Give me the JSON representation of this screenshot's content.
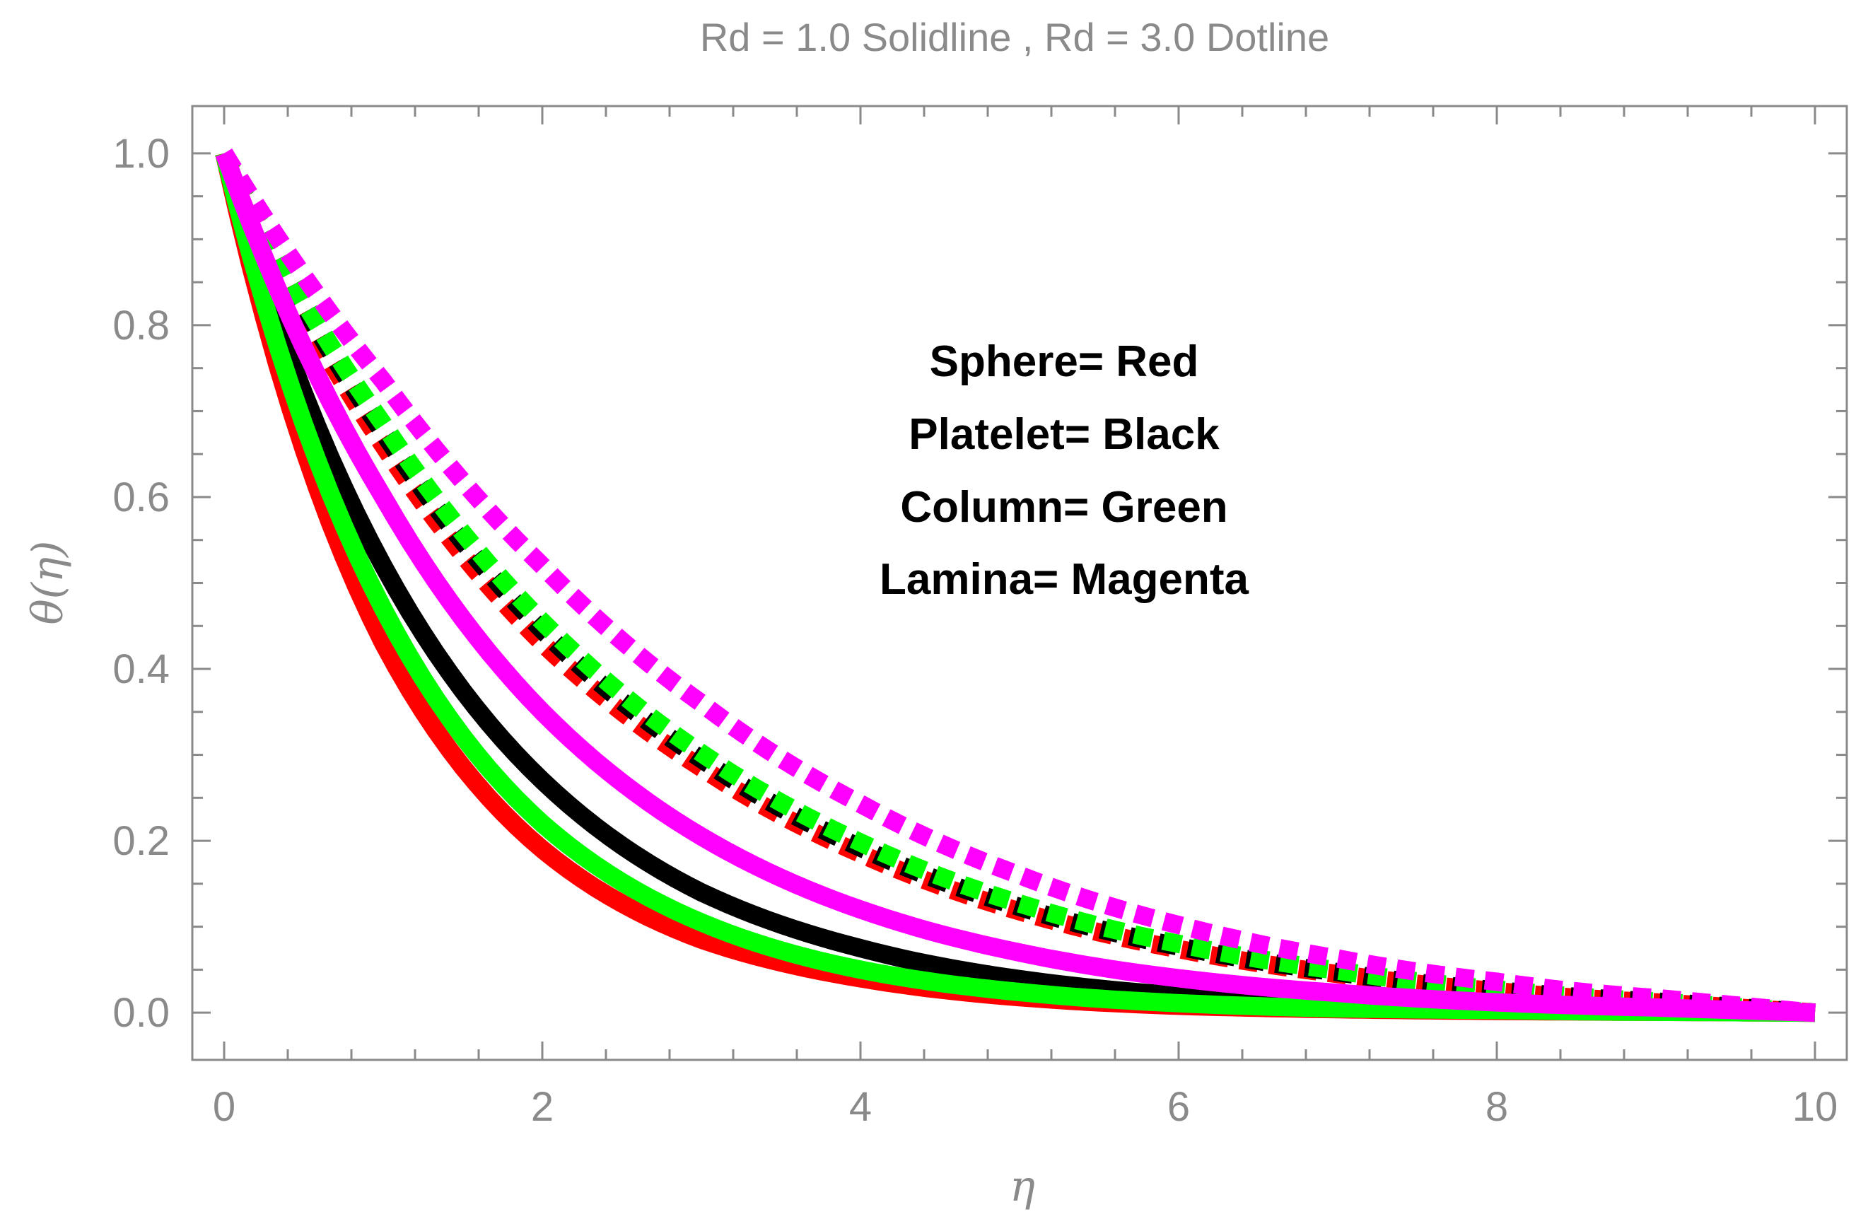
{
  "chart_data": {
    "type": "line",
    "title": "Rd = 1.0  Solidline , Rd = 3.0  Dotline",
    "xlabel": "η",
    "ylabel": "θ(η)",
    "xlim": [
      -0.2,
      10.2
    ],
    "ylim": [
      -0.055,
      1.055
    ],
    "x_ticks": [
      0,
      2,
      4,
      6,
      8,
      10
    ],
    "y_ticks": [
      0.0,
      0.2,
      0.4,
      0.6,
      0.8,
      1.0
    ],
    "x_tick_labels": [
      "0",
      "2",
      "4",
      "6",
      "8",
      "10"
    ],
    "y_tick_labels": [
      "0.0",
      "0.2",
      "0.4",
      "0.6",
      "0.8",
      "1.0"
    ],
    "grid": false,
    "annotation_lines": [
      "Sphere= Red",
      "Platelet= Black",
      "Column= Green",
      "Lamina= Magenta"
    ],
    "series": [
      {
        "name": "Sphere, Rd = 1.0",
        "color": "#ff0000",
        "style": "solid",
        "x": [
          0,
          1,
          2,
          3,
          4,
          5,
          6,
          7,
          8,
          9,
          10
        ],
        "values": [
          1.0,
          0.43,
          0.19,
          0.085,
          0.04,
          0.018,
          0.008,
          0.004,
          0.002,
          0.001,
          0.0
        ]
      },
      {
        "name": "Platelet, Rd = 1.0",
        "color": "#000000",
        "style": "solid",
        "x": [
          0,
          1,
          2,
          3,
          4,
          5,
          6,
          7,
          8,
          9,
          10
        ],
        "values": [
          1.0,
          0.52,
          0.27,
          0.14,
          0.075,
          0.039,
          0.02,
          0.011,
          0.006,
          0.003,
          0.0
        ]
      },
      {
        "name": "Column, Rd = 1.0",
        "color": "#00ff00",
        "style": "solid",
        "x": [
          0,
          1,
          2,
          3,
          4,
          5,
          6,
          7,
          8,
          9,
          10
        ],
        "values": [
          1.0,
          0.47,
          0.22,
          0.105,
          0.05,
          0.024,
          0.011,
          0.005,
          0.003,
          0.001,
          0.0
        ]
      },
      {
        "name": "Lamina, Rd = 1.0",
        "color": "#ff00ff",
        "style": "solid",
        "x": [
          0,
          1,
          2,
          3,
          4,
          5,
          6,
          7,
          8,
          9,
          10
        ],
        "values": [
          1.0,
          0.6,
          0.35,
          0.205,
          0.12,
          0.07,
          0.04,
          0.023,
          0.012,
          0.006,
          0.0
        ]
      },
      {
        "name": "Sphere, Rd = 3.0",
        "color": "#ff0000",
        "style": "dotted",
        "x": [
          0,
          1,
          2,
          3,
          4,
          5,
          6,
          7,
          8,
          9,
          10
        ],
        "values": [
          1.0,
          0.66,
          0.43,
          0.285,
          0.185,
          0.118,
          0.074,
          0.045,
          0.025,
          0.012,
          0.0
        ]
      },
      {
        "name": "Platelet, Rd = 3.0",
        "color": "#000000",
        "style": "dotted",
        "x": [
          0,
          1,
          2,
          3,
          4,
          5,
          6,
          7,
          8,
          9,
          10
        ],
        "values": [
          1.0,
          0.675,
          0.445,
          0.295,
          0.192,
          0.123,
          0.077,
          0.047,
          0.026,
          0.013,
          0.0
        ]
      },
      {
        "name": "Column, Rd = 3.0",
        "color": "#00ff00",
        "style": "dotted",
        "x": [
          0,
          1,
          2,
          3,
          4,
          5,
          6,
          7,
          8,
          9,
          10
        ],
        "values": [
          1.0,
          0.685,
          0.455,
          0.302,
          0.198,
          0.127,
          0.08,
          0.049,
          0.027,
          0.013,
          0.0
        ]
      },
      {
        "name": "Lamina, Rd = 3.0",
        "color": "#ff00ff",
        "style": "dotted",
        "x": [
          0,
          1,
          2,
          3,
          4,
          5,
          6,
          7,
          8,
          9,
          10
        ],
        "values": [
          1.0,
          0.735,
          0.52,
          0.36,
          0.243,
          0.16,
          0.102,
          0.063,
          0.036,
          0.017,
          0.0
        ]
      }
    ]
  }
}
